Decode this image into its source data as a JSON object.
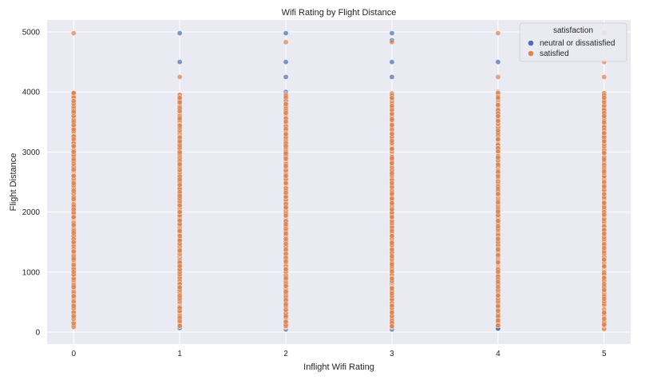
{
  "chart_data": {
    "type": "scatter",
    "title": "Wifi Rating by Flight Distance",
    "xlabel": "Inflight Wifi Rating",
    "ylabel": "Flight Distance",
    "xlim": [
      -0.25,
      5.25
    ],
    "ylim": [
      -200,
      5200
    ],
    "x_ticks": [
      "0",
      "1",
      "2",
      "3",
      "4",
      "5"
    ],
    "y_ticks": [
      "0",
      "1000",
      "2000",
      "3000",
      "4000",
      "5000"
    ],
    "grid": true,
    "background": "#eaeaf2",
    "legend": {
      "title": "satisfaction",
      "placement": "top-right"
    },
    "series": [
      {
        "name": "neutral or dissatisfied",
        "color": "#4c72b0",
        "distribution": [
          {
            "x": 0,
            "y_range": null
          },
          {
            "x": 1,
            "y_range": [
              60,
              3950
            ],
            "outliers": [
              4500,
              4980
            ]
          },
          {
            "x": 2,
            "y_range": [
              30,
              3990
            ],
            "outliers": [
              4250,
              4500,
              4980
            ]
          },
          {
            "x": 3,
            "y_range": [
              40,
              3990
            ],
            "outliers": [
              4250,
              4500,
              4860,
              4980
            ]
          },
          {
            "x": 4,
            "y_range": [
              50,
              3990
            ],
            "outliers": [
              4500
            ]
          },
          {
            "x": 5,
            "y_range": [
              2500,
              3900
            ]
          }
        ]
      },
      {
        "name": "satisfied",
        "color": "#dd8452",
        "distribution": [
          {
            "x": 0,
            "y_range": [
              80,
              3990
            ],
            "outliers": [
              4980
            ]
          },
          {
            "x": 1,
            "y_range": [
              80,
              3990
            ],
            "outliers": [
              4250
            ]
          },
          {
            "x": 2,
            "y_range": [
              60,
              3990
            ],
            "outliers": [
              4830
            ]
          },
          {
            "x": 3,
            "y_range": [
              80,
              3990
            ],
            "outliers": [
              4830
            ]
          },
          {
            "x": 4,
            "y_range": [
              100,
              3990
            ],
            "outliers": [
              4250,
              4980
            ]
          },
          {
            "x": 5,
            "y_range": [
              40,
              3990
            ],
            "outliers": [
              4250,
              4500,
              4980
            ]
          }
        ]
      }
    ]
  }
}
